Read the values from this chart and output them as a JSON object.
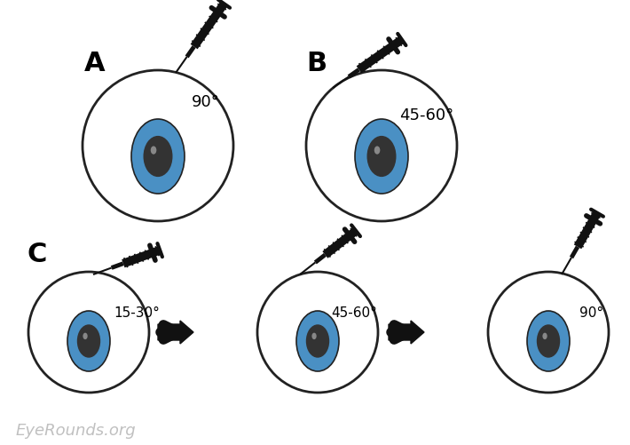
{
  "bg_color": "#ffffff",
  "eye_outline_color": "#222222",
  "eye_fill_color": "#ffffff",
  "iris_color": "#4a90c4",
  "pupil_color": "#333333",
  "needle_color": "#111111",
  "label_A": "A",
  "label_B": "B",
  "label_C": "C",
  "angle_A": "90°",
  "angle_B": "45-60°",
  "angle_C1": "15-30°",
  "angle_C2": "45-60°",
  "angle_C3": "90°",
  "watermark": "EyeRounds.org",
  "watermark_color": "#c0c0c0",
  "arrow_color": "#111111"
}
